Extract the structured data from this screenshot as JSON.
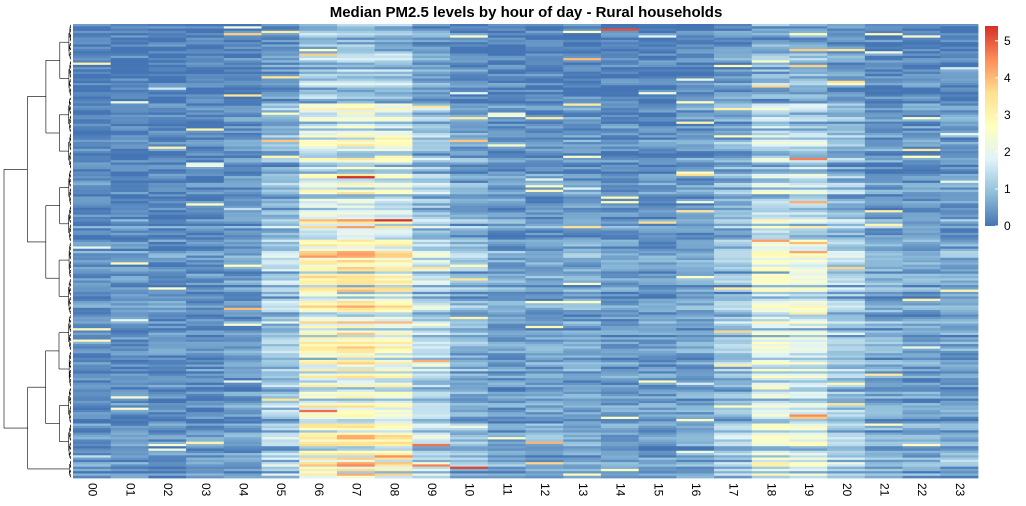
{
  "chart_data": {
    "type": "heatmap",
    "title": "Median PM2.5 levels by hour of day - Rural households",
    "xlabel": "",
    "ylabel": "",
    "x_categories": [
      "00",
      "01",
      "02",
      "03",
      "04",
      "05",
      "06",
      "07",
      "08",
      "09",
      "10",
      "11",
      "12",
      "13",
      "14",
      "15",
      "16",
      "17",
      "18",
      "19",
      "20",
      "21",
      "22",
      "23"
    ],
    "row_count": 200,
    "dendrogram": "left",
    "value_range": [
      0,
      5.4
    ],
    "colorbar": {
      "ticks": [
        "0",
        "1",
        "2",
        "3",
        "4",
        "5"
      ],
      "tick_values": [
        0,
        1,
        2,
        3,
        4,
        5
      ],
      "colors": [
        "#4575b4",
        "#91bfdb",
        "#e0f3f8",
        "#ffffbf",
        "#fee090",
        "#fc8d59",
        "#d73027"
      ]
    },
    "hourly_median_profile": [
      0.3,
      0.3,
      0.3,
      0.3,
      0.4,
      1.0,
      2.2,
      2.4,
      2.1,
      1.2,
      0.7,
      0.5,
      0.5,
      0.5,
      0.4,
      0.4,
      0.5,
      0.9,
      1.7,
      1.6,
      1.0,
      0.6,
      0.5,
      0.5
    ],
    "notable_hotspots": [
      {
        "row": 2,
        "hour": "14",
        "value": 5.1
      },
      {
        "row": 3,
        "hour": "05",
        "value": 3.3
      },
      {
        "row": 4,
        "hour": "04",
        "value": 3.8
      },
      {
        "row": 15,
        "hour": "13",
        "value": 4.0
      },
      {
        "row": 25,
        "hour": "20",
        "value": 3.6
      },
      {
        "row": 95,
        "hour": "18",
        "value": 4.3
      },
      {
        "row": 96,
        "hour": "19",
        "value": 4.0
      },
      {
        "row": 125,
        "hour": "04",
        "value": 4.0
      },
      {
        "row": 170,
        "hour": "06",
        "value": 4.8
      },
      {
        "row": 172,
        "hour": "19",
        "value": 4.5
      },
      {
        "row": 194,
        "hour": "09",
        "value": 4.6
      },
      {
        "row": 195,
        "hour": "10",
        "value": 5.2
      }
    ]
  }
}
